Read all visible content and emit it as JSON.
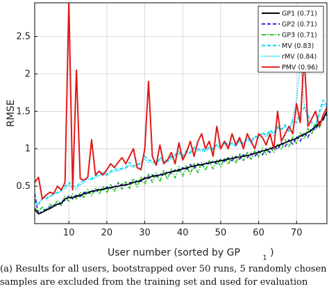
{
  "chart_data": {
    "type": "line",
    "xlabel": "User number (sorted by GP",
    "xlabel_subscript": "1",
    "xlabel_close": ")",
    "ylabel": "RMSE",
    "xlim": [
      1,
      78
    ],
    "ylim": [
      0,
      2.95
    ],
    "xticks": [
      10,
      20,
      30,
      40,
      50,
      60,
      70
    ],
    "yticks": [
      0.5,
      1,
      1.5,
      2,
      2.5
    ],
    "grid": true,
    "legend_position": "top-right",
    "series": [
      {
        "name": "GP1 (0.71)",
        "color": "#000000",
        "dash": "solid",
        "values": [
          0.19,
          0.13,
          0.15,
          0.18,
          0.2,
          0.23,
          0.26,
          0.27,
          0.33,
          0.35,
          0.35,
          0.36,
          0.38,
          0.4,
          0.41,
          0.43,
          0.44,
          0.45,
          0.46,
          0.47,
          0.48,
          0.49,
          0.5,
          0.51,
          0.52,
          0.53,
          0.55,
          0.56,
          0.58,
          0.6,
          0.62,
          0.63,
          0.64,
          0.65,
          0.66,
          0.68,
          0.69,
          0.7,
          0.72,
          0.73,
          0.74,
          0.76,
          0.77,
          0.78,
          0.79,
          0.8,
          0.81,
          0.82,
          0.83,
          0.84,
          0.85,
          0.86,
          0.87,
          0.88,
          0.89,
          0.9,
          0.91,
          0.92,
          0.94,
          0.95,
          0.97,
          0.98,
          1.0,
          1.02,
          1.04,
          1.06,
          1.08,
          1.1,
          1.12,
          1.14,
          1.17,
          1.19,
          1.22,
          1.25,
          1.3,
          1.34,
          1.4,
          1.5
        ]
      },
      {
        "name": "GP2 (0.71)",
        "color": "#1f1fd6",
        "dash": "dashed",
        "values": [
          0.4,
          0.12,
          0.17,
          0.19,
          0.22,
          0.25,
          0.24,
          0.3,
          0.31,
          0.37,
          0.33,
          0.38,
          0.36,
          0.42,
          0.4,
          0.45,
          0.42,
          0.47,
          0.45,
          0.49,
          0.47,
          0.51,
          0.49,
          0.53,
          0.51,
          0.55,
          0.54,
          0.58,
          0.56,
          0.62,
          0.6,
          0.65,
          0.62,
          0.67,
          0.64,
          0.7,
          0.67,
          0.72,
          0.7,
          0.75,
          0.72,
          0.79,
          0.74,
          0.8,
          0.77,
          0.82,
          0.79,
          0.84,
          0.8,
          0.86,
          0.83,
          0.88,
          0.84,
          0.9,
          0.86,
          0.92,
          0.88,
          0.94,
          0.9,
          0.97,
          0.92,
          1.0,
          0.95,
          1.04,
          0.99,
          1.08,
          1.03,
          1.12,
          1.06,
          1.16,
          1.1,
          1.22,
          1.15,
          1.28,
          1.25,
          1.36,
          1.38,
          1.48
        ]
      },
      {
        "name": "GP3 (0.71)",
        "color": "#22c422",
        "dash": "dashdot",
        "values": [
          0.21,
          0.16,
          0.22,
          0.17,
          0.26,
          0.22,
          0.31,
          0.24,
          0.37,
          0.29,
          0.4,
          0.32,
          0.42,
          0.34,
          0.46,
          0.37,
          0.48,
          0.39,
          0.5,
          0.41,
          0.52,
          0.43,
          0.55,
          0.46,
          0.56,
          0.47,
          0.6,
          0.49,
          0.62,
          0.53,
          0.66,
          0.55,
          0.68,
          0.56,
          0.71,
          0.59,
          0.73,
          0.61,
          0.76,
          0.63,
          0.78,
          0.66,
          0.8,
          0.68,
          0.82,
          0.71,
          0.84,
          0.73,
          0.86,
          0.76,
          0.88,
          0.79,
          0.9,
          0.81,
          0.93,
          0.84,
          0.95,
          0.86,
          0.98,
          0.89,
          1.01,
          0.92,
          1.03,
          0.95,
          1.07,
          0.99,
          1.12,
          1.03,
          1.16,
          1.07,
          1.22,
          1.13,
          1.27,
          1.2,
          1.33,
          1.28,
          1.4,
          1.46
        ]
      },
      {
        "name": "MV (0.83)",
        "color": "#00d8e8",
        "dash": "dashed",
        "values": [
          0.3,
          0.25,
          0.34,
          0.33,
          0.36,
          0.39,
          0.42,
          0.45,
          0.5,
          0.55,
          0.5,
          0.49,
          0.55,
          0.58,
          0.62,
          0.6,
          0.64,
          0.66,
          0.68,
          0.66,
          0.7,
          0.73,
          0.72,
          0.74,
          0.75,
          0.82,
          0.77,
          0.79,
          0.81,
          0.9,
          0.85,
          0.84,
          0.8,
          0.88,
          0.86,
          0.84,
          0.9,
          0.92,
          0.96,
          0.9,
          0.98,
          0.95,
          1.02,
          0.99,
          1.0,
          0.97,
          1.03,
          1.0,
          1.06,
          1.02,
          1.1,
          1.05,
          1.08,
          1.04,
          1.12,
          1.07,
          1.15,
          1.1,
          1.17,
          1.15,
          1.22,
          1.18,
          1.25,
          1.2,
          1.3,
          1.26,
          1.32,
          1.24,
          1.38,
          1.35,
          1.48,
          1.55,
          1.45,
          1.35,
          1.3,
          1.5,
          1.65,
          1.58
        ]
      },
      {
        "name": "rMV (0.84)",
        "color": "#00cfff",
        "dash": "dotted",
        "values": [
          0.28,
          0.27,
          0.33,
          0.35,
          0.37,
          0.4,
          0.4,
          0.44,
          0.47,
          0.52,
          0.47,
          0.46,
          0.52,
          0.55,
          0.6,
          0.58,
          0.62,
          0.64,
          0.66,
          0.64,
          0.68,
          0.7,
          0.7,
          0.73,
          0.73,
          0.78,
          0.75,
          0.78,
          0.8,
          0.86,
          0.82,
          0.82,
          0.79,
          0.86,
          0.84,
          0.82,
          0.88,
          0.9,
          0.94,
          0.88,
          0.96,
          0.93,
          1.0,
          0.97,
          0.98,
          0.96,
          1.01,
          0.99,
          1.04,
          1.0,
          1.07,
          1.03,
          1.06,
          1.03,
          1.1,
          1.05,
          1.12,
          1.08,
          1.15,
          1.13,
          1.2,
          1.16,
          1.23,
          1.18,
          1.28,
          1.25,
          1.3,
          1.22,
          1.4,
          1.65,
          2.15,
          1.6,
          1.38,
          1.32,
          1.28,
          1.45,
          1.6,
          1.55
        ]
      },
      {
        "name": "PMV (0.96)",
        "color": "#e01818",
        "dash": "solid",
        "values": [
          0.55,
          0.62,
          0.33,
          0.38,
          0.42,
          0.4,
          0.5,
          0.45,
          0.55,
          2.98,
          0.45,
          2.05,
          0.6,
          0.58,
          0.62,
          1.12,
          0.65,
          0.7,
          0.65,
          0.72,
          0.8,
          0.75,
          0.82,
          0.88,
          0.8,
          0.9,
          1.0,
          0.75,
          0.72,
          1.0,
          1.9,
          0.9,
          0.78,
          1.05,
          0.8,
          0.85,
          0.95,
          0.8,
          1.08,
          0.85,
          0.95,
          1.1,
          0.9,
          1.1,
          1.2,
          1.0,
          1.1,
          0.9,
          1.3,
          1.0,
          1.1,
          1.0,
          1.2,
          1.05,
          1.15,
          1.0,
          1.2,
          1.1,
          1.0,
          1.2,
          1.15,
          1.05,
          1.2,
          1.0,
          1.5,
          1.1,
          1.2,
          1.3,
          1.2,
          1.6,
          1.35,
          2.25,
          1.3,
          1.4,
          1.5,
          1.3,
          1.45,
          1.55
        ]
      }
    ]
  },
  "caption": {
    "line1": "(a) Results for all users, bootstrapped over 50 runs, 5 randomly chosen",
    "line2": "samples are excluded from the training set and used for evaluation"
  }
}
